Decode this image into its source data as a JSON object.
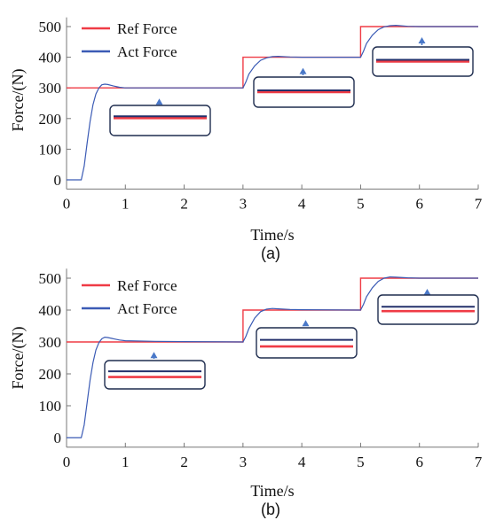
{
  "chart_data": [
    {
      "type": "line",
      "caption": "(a)",
      "xlabel": "Time/s",
      "ylabel": "Force/(N)",
      "xlim": [
        0,
        7
      ],
      "ylim": [
        -30,
        530
      ],
      "xticks": [
        0,
        1,
        2,
        3,
        4,
        5,
        6,
        7
      ],
      "yticks": [
        0,
        100,
        200,
        300,
        400,
        500
      ],
      "legend": {
        "placement": "top-left"
      },
      "series": [
        {
          "name": "Ref Force",
          "color": "#ef3b45",
          "points": [
            [
              0,
              300
            ],
            [
              3,
              300
            ],
            [
              3,
              400
            ],
            [
              5,
              400
            ],
            [
              5,
              500
            ],
            [
              7,
              500
            ]
          ]
        },
        {
          "name": "Act Force",
          "color": "#3b5bb5",
          "points": [
            [
              0,
              0
            ],
            [
              0.25,
              0
            ],
            [
              0.3,
              45
            ],
            [
              0.35,
              120
            ],
            [
              0.4,
              190
            ],
            [
              0.45,
              245
            ],
            [
              0.5,
              280
            ],
            [
              0.55,
              300
            ],
            [
              0.6,
              310
            ],
            [
              0.65,
              312
            ],
            [
              0.7,
              311
            ],
            [
              0.8,
              306
            ],
            [
              0.9,
              302
            ],
            [
              1.0,
              300
            ],
            [
              3.0,
              300
            ],
            [
              3.05,
              320
            ],
            [
              3.1,
              345
            ],
            [
              3.2,
              372
            ],
            [
              3.3,
              390
            ],
            [
              3.4,
              398
            ],
            [
              3.5,
              402
            ],
            [
              3.6,
              403
            ],
            [
              3.8,
              401
            ],
            [
              4.0,
              400
            ],
            [
              5.0,
              400
            ],
            [
              5.05,
              420
            ],
            [
              5.1,
              445
            ],
            [
              5.2,
              472
            ],
            [
              5.3,
              490
            ],
            [
              5.4,
              499
            ],
            [
              5.5,
              503
            ],
            [
              5.6,
              504
            ],
            [
              5.8,
              501
            ],
            [
              6.0,
              500
            ],
            [
              7.0,
              500
            ]
          ]
        }
      ],
      "insets": [
        {
          "near_x": 1.55,
          "near_y": 300,
          "ref_level": 0.42,
          "act_level": 0.36
        },
        {
          "near_x": 3.85,
          "near_y": 400,
          "ref_level": 0.5,
          "act_level": 0.44
        },
        {
          "near_x": 5.95,
          "near_y": 500,
          "ref_level": 0.5,
          "act_level": 0.44
        }
      ]
    },
    {
      "type": "line",
      "caption": "(b)",
      "xlabel": "Time/s",
      "ylabel": "Force/(N)",
      "xlim": [
        0,
        7
      ],
      "ylim": [
        -30,
        530
      ],
      "xticks": [
        0,
        1,
        2,
        3,
        4,
        5,
        6,
        7
      ],
      "yticks": [
        0,
        100,
        200,
        300,
        400,
        500
      ],
      "legend": {
        "placement": "top-left"
      },
      "series": [
        {
          "name": "Ref Force",
          "color": "#ef3b45",
          "points": [
            [
              0,
              300
            ],
            [
              3,
              300
            ],
            [
              3,
              400
            ],
            [
              5,
              400
            ],
            [
              5,
              500
            ],
            [
              7,
              500
            ]
          ]
        },
        {
          "name": "Act Force",
          "color": "#3b5bb5",
          "points": [
            [
              0,
              0
            ],
            [
              0.25,
              0
            ],
            [
              0.3,
              40
            ],
            [
              0.35,
              110
            ],
            [
              0.4,
              180
            ],
            [
              0.45,
              235
            ],
            [
              0.5,
              275
            ],
            [
              0.55,
              298
            ],
            [
              0.6,
              310
            ],
            [
              0.65,
              315
            ],
            [
              0.7,
              314
            ],
            [
              0.8,
              310
            ],
            [
              0.9,
              306
            ],
            [
              1.0,
              304
            ],
            [
              1.5,
              302
            ],
            [
              2.0,
              301
            ],
            [
              3.0,
              300
            ],
            [
              3.05,
              318
            ],
            [
              3.1,
              342
            ],
            [
              3.2,
              375
            ],
            [
              3.3,
              395
            ],
            [
              3.4,
              403
            ],
            [
              3.5,
              405
            ],
            [
              3.6,
              404
            ],
            [
              3.8,
              402
            ],
            [
              4.0,
              401
            ],
            [
              5.0,
              400
            ],
            [
              5.05,
              418
            ],
            [
              5.1,
              442
            ],
            [
              5.2,
              470
            ],
            [
              5.3,
              490
            ],
            [
              5.4,
              500
            ],
            [
              5.5,
              504
            ],
            [
              5.6,
              503
            ],
            [
              5.8,
              501
            ],
            [
              6.0,
              500
            ],
            [
              7.0,
              500
            ]
          ]
        }
      ],
      "insets": [
        {
          "near_x": 1.38,
          "near_y": 302,
          "ref_level": 0.58,
          "act_level": 0.38
        },
        {
          "near_x": 4.05,
          "near_y": 402,
          "ref_level": 0.62,
          "act_level": 0.4
        },
        {
          "near_x": 5.95,
          "near_y": 500,
          "ref_level": 0.55,
          "act_level": 0.4
        }
      ]
    }
  ]
}
